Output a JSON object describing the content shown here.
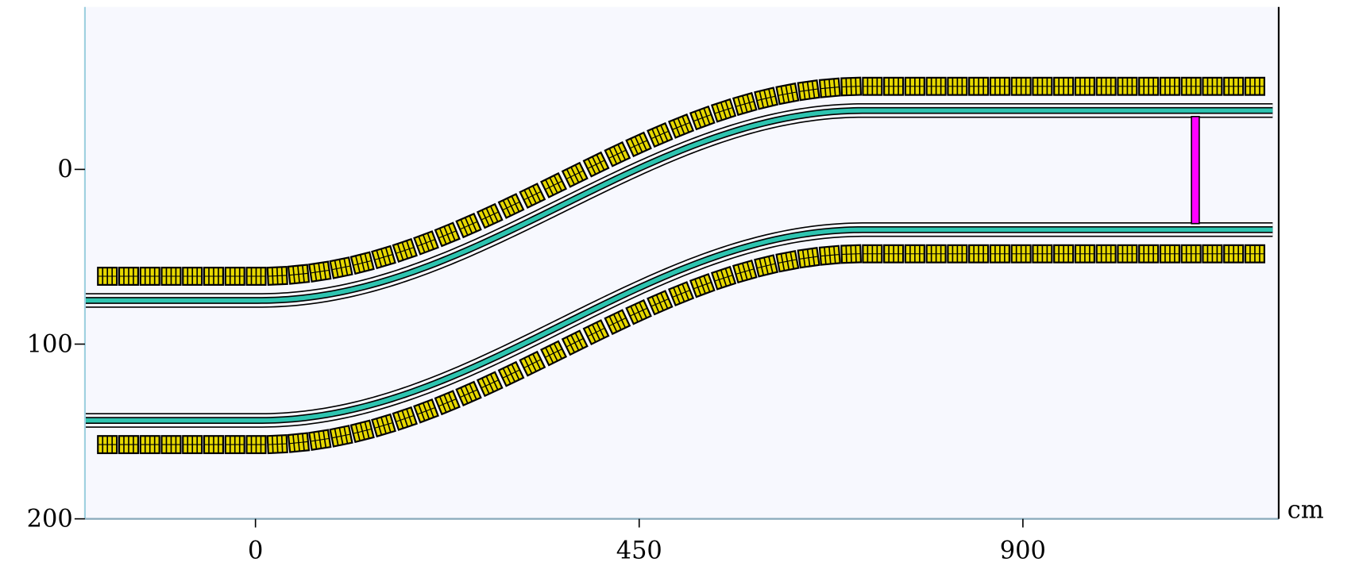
{
  "plot": {
    "xlim": [
      -200,
      1200
    ],
    "ylim": [
      -93,
      200
    ],
    "xticks": [
      0,
      450,
      900
    ],
    "yticks": [
      0,
      100,
      200
    ],
    "x_unit": "cm"
  }
}
